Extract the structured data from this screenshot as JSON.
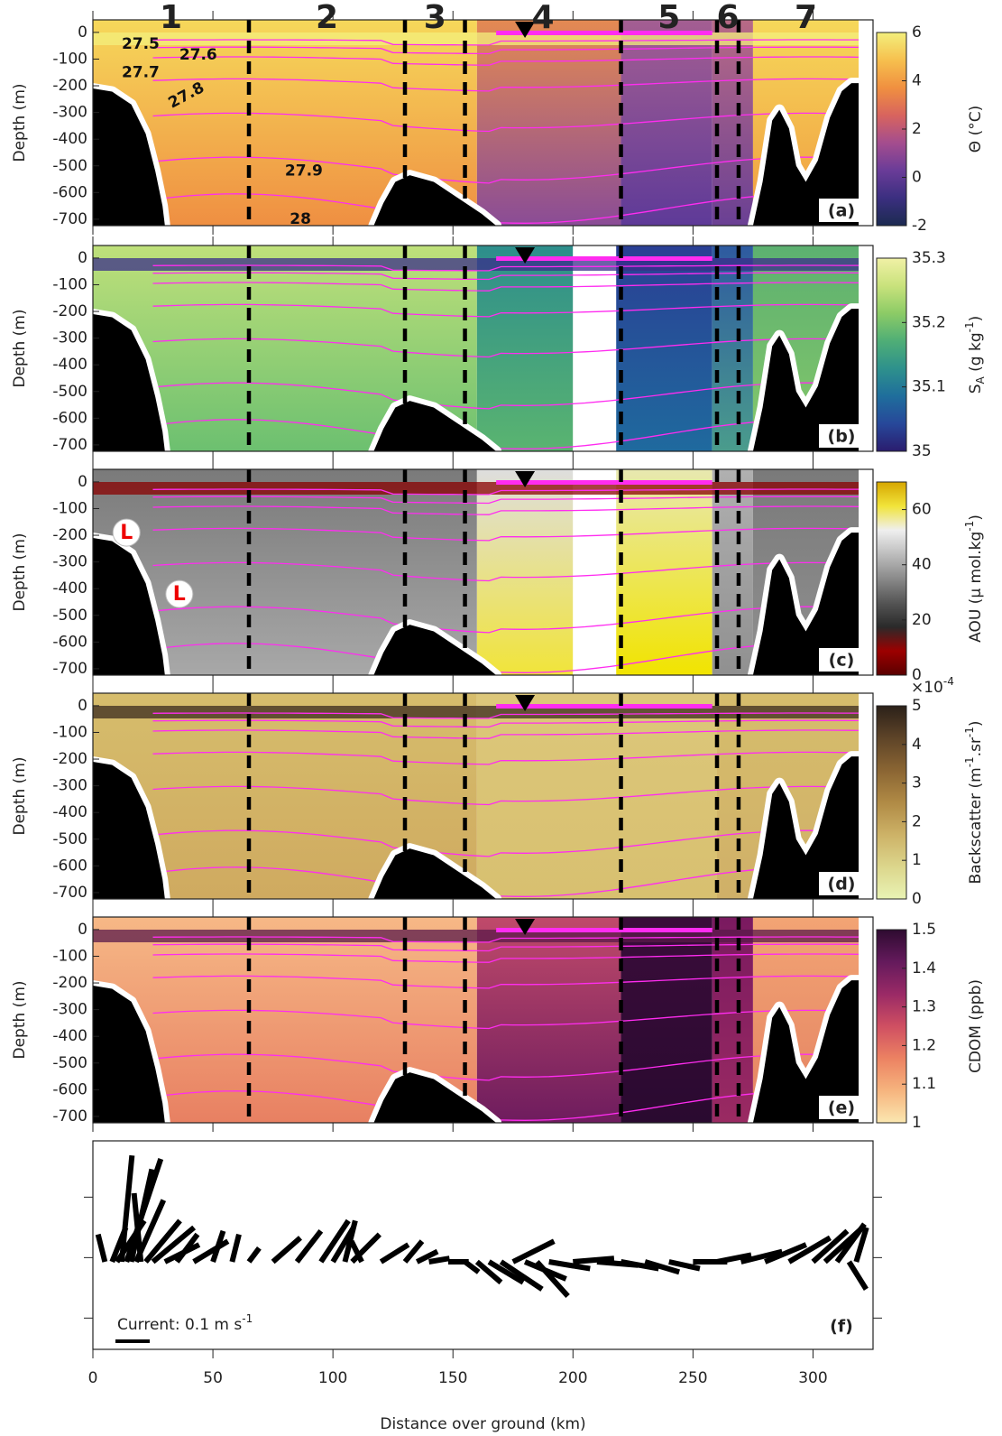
{
  "chart_data": [
    {
      "type": "section",
      "panel_label": "(a)",
      "ylabel": "Depth (m)",
      "xlim": [
        0,
        325
      ],
      "xticks": [
        0,
        50,
        100,
        150,
        200,
        250,
        300
      ],
      "ylim": [
        -724,
        47
      ],
      "yticks": [
        0,
        -100,
        -200,
        -300,
        -400,
        -500,
        -600,
        -700
      ],
      "colorbar": {
        "label": "Θ (°C)",
        "lim": [
          -2,
          6
        ],
        "ticks": [
          -2,
          0,
          2,
          4,
          6
        ],
        "colormap": [
          "#1b2a50",
          "#3b2f80",
          "#6a3c98",
          "#a44d8e",
          "#d8645e",
          "#f09040",
          "#f6c04e",
          "#f3ef7c"
        ]
      },
      "sections": [
        {
          "label": "1",
          "color": "#1f1fe0"
        },
        {
          "label": "2",
          "color": "#22d3e6"
        },
        {
          "label": "3",
          "color": "#f3c21e"
        },
        {
          "label": "4",
          "color": "#2b8c2b"
        },
        {
          "label": "5",
          "color": "#f5841f"
        },
        {
          "label": "6",
          "color": "#6e1f82"
        },
        {
          "label": "7",
          "color": "#e21b1b"
        }
      ],
      "section_boundaries": [
        65,
        130,
        155,
        220,
        260,
        269
      ],
      "marker_x": 180,
      "isopycnal_labels": [
        27.5,
        27.6,
        27.7,
        27.8,
        27.9,
        28
      ]
    },
    {
      "type": "section",
      "panel_label": "(b)",
      "ylabel": "Depth (m)",
      "xlim": [
        0,
        325
      ],
      "xticks": [
        0,
        50,
        100,
        150,
        200,
        250,
        300
      ],
      "ylim": [
        -724,
        47
      ],
      "yticks": [
        0,
        -100,
        -200,
        -300,
        -400,
        -500,
        -600,
        -700
      ],
      "colorbar": {
        "label": [
          {
            "text": "S"
          },
          {
            "text": "A",
            "script": "sub"
          },
          {
            "text": " (g kg"
          },
          {
            "text": "-1",
            "script": "sup"
          },
          {
            "text": ")"
          }
        ],
        "lim": [
          35,
          35.3
        ],
        "ticks": [
          35,
          35.1,
          35.2,
          35.3
        ],
        "colormap": [
          "#2a1c6e",
          "#27489a",
          "#1f6e9c",
          "#2e918c",
          "#4fae76",
          "#8ccb66",
          "#c9e27c",
          "#f1f1a6"
        ]
      }
    },
    {
      "type": "section",
      "panel_label": "(c)",
      "ylabel": "Depth (m)",
      "xlim": [
        0,
        325
      ],
      "xticks": [
        0,
        50,
        100,
        150,
        200,
        250,
        300
      ],
      "ylim": [
        -724,
        47
      ],
      "yticks": [
        0,
        -100,
        -200,
        -300,
        -400,
        -500,
        -600,
        -700
      ],
      "colorbar": {
        "label": [
          {
            "text": "AOU (μ mol.kg"
          },
          {
            "text": "-1",
            "script": "sup"
          },
          {
            "text": ")"
          }
        ],
        "lim": [
          0,
          70
        ],
        "ticks": [
          0,
          20,
          40,
          60
        ],
        "colormap": [
          "#5a0000",
          "#9c0000",
          "#2a2a2a",
          "#555555",
          "#8a8a8a",
          "#bdbdbd",
          "#efefef",
          "#f1e43a",
          "#d6a600"
        ]
      },
      "annotations": [
        "L",
        "L"
      ]
    },
    {
      "type": "section",
      "panel_label": "(d)",
      "ylabel": "Depth (m)",
      "xlim": [
        0,
        325
      ],
      "xticks": [
        0,
        50,
        100,
        150,
        200,
        250,
        300
      ],
      "ylim": [
        -724,
        47
      ],
      "yticks": [
        0,
        -100,
        -200,
        -300,
        -400,
        -500,
        -600,
        -700
      ],
      "colorbar": {
        "label": [
          {
            "text": "Backscatter (m"
          },
          {
            "text": "-1",
            "script": "sup"
          },
          {
            "text": ".sr"
          },
          {
            "text": "-1",
            "script": "sup"
          },
          {
            "text": ")"
          }
        ],
        "lim": [
          0,
          5
        ],
        "ticks": [
          0,
          1,
          2,
          3,
          4,
          5
        ],
        "colormap": [
          "#e9f3b4",
          "#dcd68c",
          "#cdb267",
          "#b08a45",
          "#8a6533",
          "#5e4428",
          "#2b2119"
        ],
        "multiplier": [
          {
            "text": "×10"
          },
          {
            "text": "-4",
            "script": "sup"
          }
        ]
      }
    },
    {
      "type": "section",
      "panel_label": "(e)",
      "ylabel": "Depth (m)",
      "xlim": [
        0,
        325
      ],
      "xticks": [
        0,
        50,
        100,
        150,
        200,
        250,
        300
      ],
      "ylim": [
        -724,
        47
      ],
      "yticks": [
        0,
        -100,
        -200,
        -300,
        -400,
        -500,
        -600,
        -700
      ],
      "colorbar": {
        "label": "CDOM (ppb)",
        "lim": [
          1,
          1.5
        ],
        "ticks": [
          1,
          1.1,
          1.2,
          1.3,
          1.4,
          1.5
        ],
        "colormap": [
          "#fbe7b0",
          "#f6b47e",
          "#ec8262",
          "#cf4f62",
          "#9a2a66",
          "#641a5c",
          "#2e0b30"
        ]
      }
    },
    {
      "type": "vector",
      "panel_label": "(f)",
      "xlabel": "Distance over ground (km)",
      "xlim": [
        0,
        325
      ],
      "xticks": [
        0,
        50,
        100,
        150,
        200,
        250,
        300
      ],
      "scale_bar": 0.1,
      "scale_label": [
        {
          "text": "Current: 0.1 m s"
        },
        {
          "text": "-1",
          "script": "sup"
        }
      ],
      "x": [
        5,
        8,
        10,
        12,
        14,
        16,
        18,
        20,
        22,
        25,
        30,
        35,
        42,
        50,
        58,
        65,
        75,
        85,
        95,
        100,
        105,
        108,
        112,
        120,
        130,
        135,
        140,
        148,
        155,
        160,
        165,
        170,
        175,
        180,
        185,
        190,
        200,
        210,
        220,
        230,
        240,
        250,
        260,
        270,
        280,
        290,
        300,
        305,
        310,
        315,
        318
      ],
      "u": [
        -0.02,
        0.04,
        0.08,
        0.03,
        0.1,
        0.06,
        0.08,
        -0.02,
        0.1,
        0.12,
        0.1,
        0.06,
        0.1,
        0.03,
        0.02,
        0.03,
        0.08,
        0.07,
        0.08,
        0.06,
        0.03,
        0.08,
        -0.03,
        0.08,
        0.05,
        0.06,
        0.06,
        0.06,
        0.04,
        0.07,
        0.1,
        0.12,
        0.12,
        0.12,
        0.09,
        0.12,
        0.12,
        0.12,
        0.11,
        0.1,
        0.09,
        0.1,
        0.1,
        0.12,
        0.12,
        0.12,
        0.1,
        0.11,
        0.08,
        0.05,
        0.03
      ],
      "v": [
        0.08,
        0.1,
        0.12,
        0.31,
        0.3,
        0.27,
        0.18,
        0.2,
        0.12,
        0.1,
        0.05,
        0.08,
        0.06,
        0.09,
        0.08,
        0.04,
        0.07,
        0.09,
        0.12,
        0.1,
        0.12,
        0.08,
        0.06,
        0.05,
        0.06,
        0.03,
        0.01,
        0,
        -0.03,
        -0.06,
        -0.06,
        -0.08,
        0.06,
        -0.05,
        -0.1,
        -0.02,
        0.01,
        -0.01,
        -0.02,
        -0.03,
        -0.02,
        0,
        0.02,
        0.03,
        0.05,
        0.07,
        0.09,
        0.1,
        0.11,
        -0.08,
        0.1
      ]
    }
  ]
}
